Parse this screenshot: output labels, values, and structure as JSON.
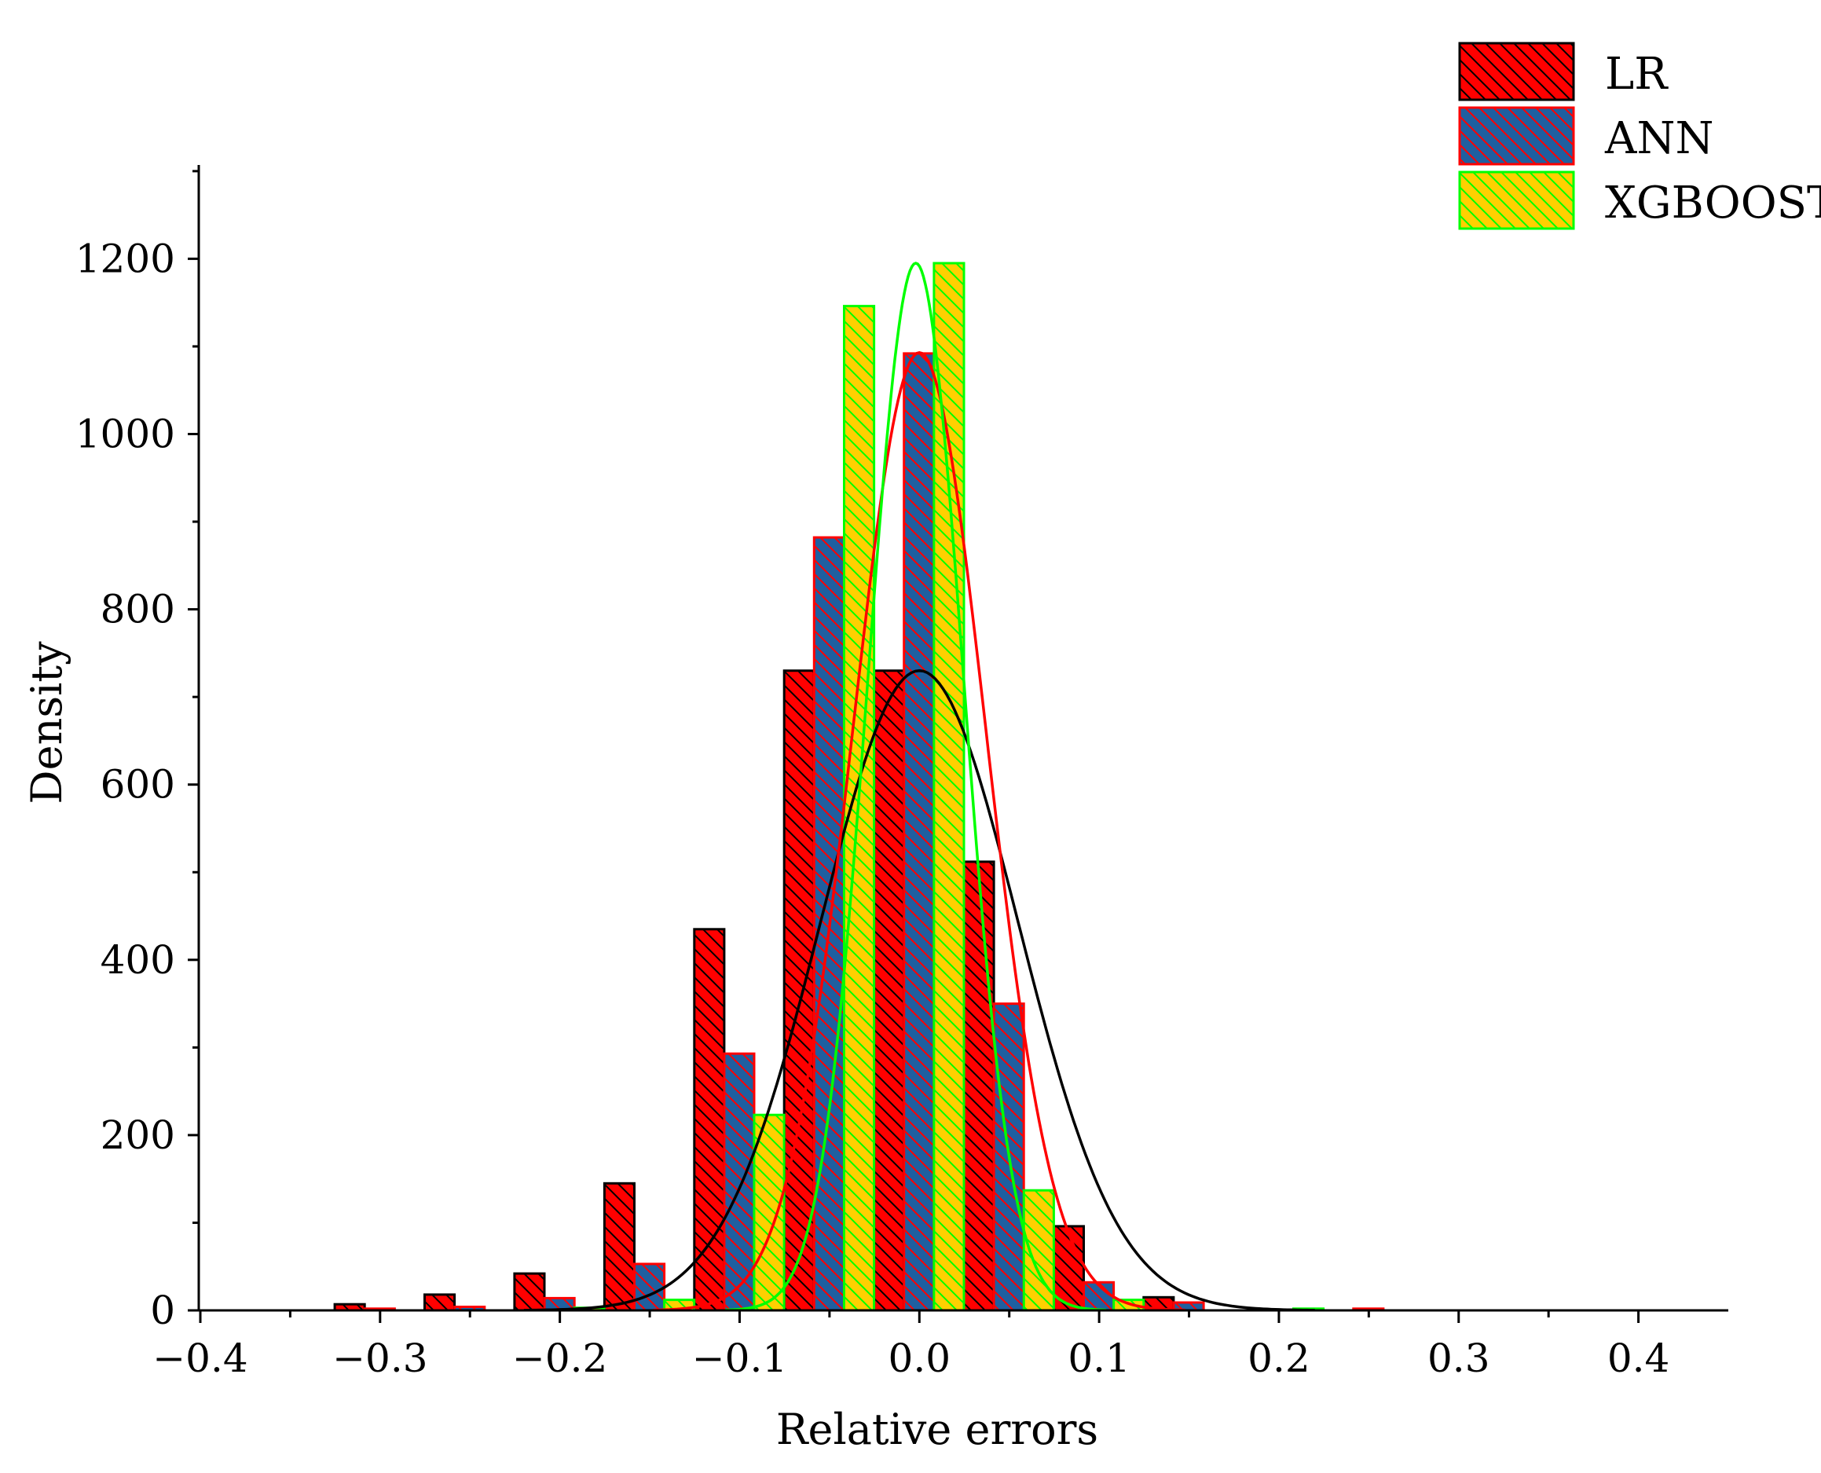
{
  "chart_data": {
    "type": "bar",
    "title": "",
    "xlabel": "Relative errors",
    "ylabel": "Density",
    "xlim": [
      -0.4,
      0.45
    ],
    "ylim": [
      0,
      1300
    ],
    "xticks": [
      {
        "v": -0.4,
        "label": "−0.4"
      },
      {
        "v": -0.3,
        "label": "−0.3"
      },
      {
        "v": -0.2,
        "label": "−0.2"
      },
      {
        "v": -0.1,
        "label": "−0.1"
      },
      {
        "v": 0.0,
        "label": "0.0"
      },
      {
        "v": 0.1,
        "label": "0.1"
      },
      {
        "v": 0.2,
        "label": "0.2"
      },
      {
        "v": 0.3,
        "label": "0.3"
      },
      {
        "v": 0.4,
        "label": "0.4"
      }
    ],
    "yticks": [
      {
        "v": 0,
        "label": "0"
      },
      {
        "v": 200,
        "label": "200"
      },
      {
        "v": 400,
        "label": "400"
      },
      {
        "v": 600,
        "label": "600"
      },
      {
        "v": 800,
        "label": "800"
      },
      {
        "v": 1000,
        "label": "1000"
      },
      {
        "v": 1200,
        "label": "1200"
      }
    ],
    "legend_position": "top-right",
    "bin_width": 0.05,
    "series": [
      {
        "name": "LR",
        "fill": "#ff0000",
        "stroke": "#000000",
        "hatch": "#000000",
        "curve_color": "#000000",
        "curve": {
          "mean": 0.0,
          "sd": 0.055,
          "peak": 730
        },
        "bars": [
          {
            "x": -0.3,
            "value": 7
          },
          {
            "x": -0.25,
            "value": 18
          },
          {
            "x": -0.2,
            "value": 42
          },
          {
            "x": -0.15,
            "value": 145
          },
          {
            "x": -0.1,
            "value": 435
          },
          {
            "x": -0.05,
            "value": 730
          },
          {
            "x": 0.0,
            "value": 730
          },
          {
            "x": 0.05,
            "value": 512
          },
          {
            "x": 0.1,
            "value": 96
          },
          {
            "x": 0.15,
            "value": 15
          }
        ]
      },
      {
        "name": "ANN",
        "fill": "#1f5fa0",
        "stroke": "#ff0000",
        "hatch": "#ff0000",
        "curve_color": "#ff0000",
        "curve": {
          "mean": 0.0,
          "sd": 0.037,
          "peak": 1093
        },
        "bars": [
          {
            "x": -0.3,
            "value": 2
          },
          {
            "x": -0.25,
            "value": 4
          },
          {
            "x": -0.2,
            "value": 14
          },
          {
            "x": -0.15,
            "value": 53
          },
          {
            "x": -0.1,
            "value": 293
          },
          {
            "x": -0.05,
            "value": 882
          },
          {
            "x": 0.0,
            "value": 1092
          },
          {
            "x": 0.05,
            "value": 350
          },
          {
            "x": 0.1,
            "value": 32
          },
          {
            "x": 0.15,
            "value": 9
          },
          {
            "x": 0.25,
            "value": 2
          }
        ]
      },
      {
        "name": "XGBOOST",
        "fill": "#ffd000",
        "stroke": "#00ff00",
        "hatch": "#00ff00",
        "curve_color": "#00ff00",
        "curve": {
          "mean": -0.002,
          "sd": 0.0265,
          "peak": 1195
        },
        "bars": [
          {
            "x": -0.2,
            "value": 3
          },
          {
            "x": -0.15,
            "value": 12
          },
          {
            "x": -0.1,
            "value": 223
          },
          {
            "x": -0.05,
            "value": 1146
          },
          {
            "x": 0.0,
            "value": 1195
          },
          {
            "x": 0.05,
            "value": 137
          },
          {
            "x": 0.1,
            "value": 12
          },
          {
            "x": 0.2,
            "value": 2
          }
        ]
      }
    ]
  }
}
